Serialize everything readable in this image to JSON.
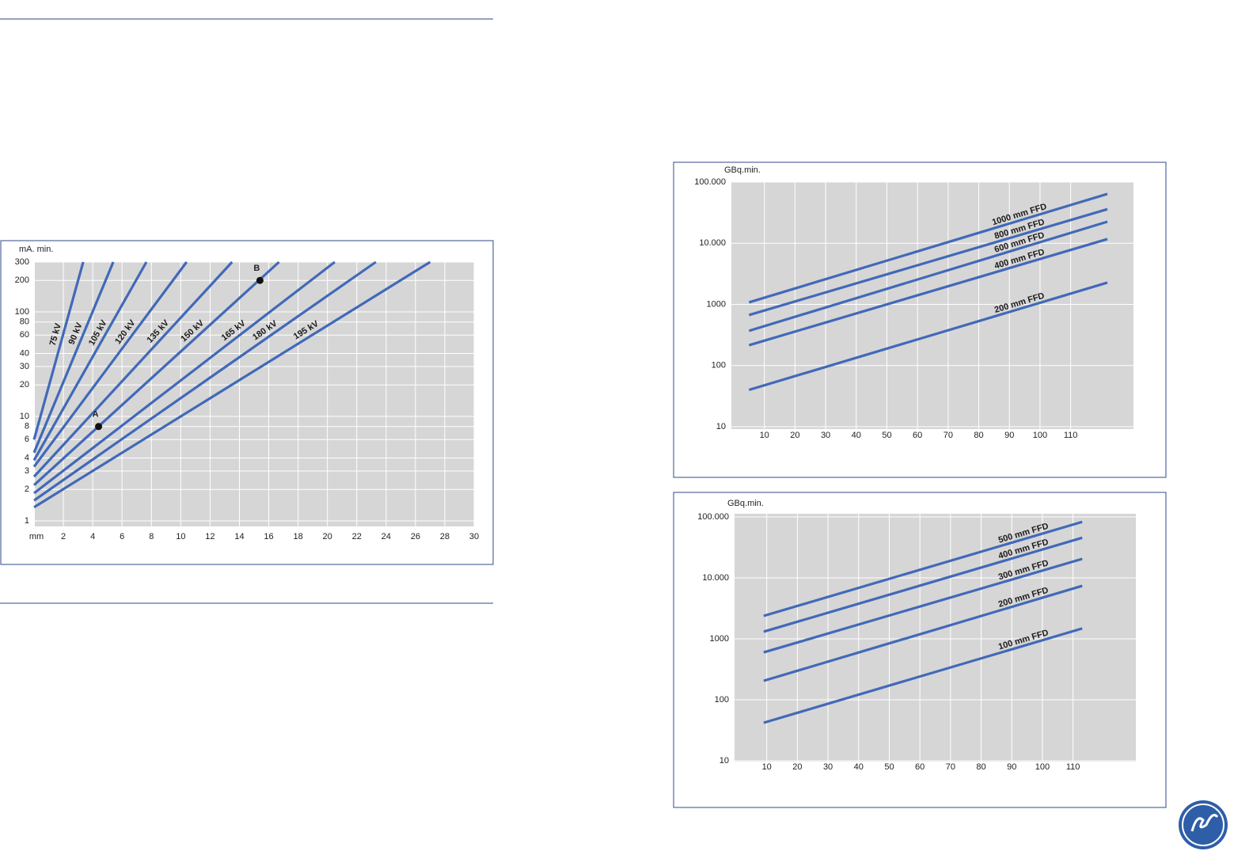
{
  "chart_data": [
    {
      "type": "line",
      "y_label": "mA. min.",
      "x_label": "mm",
      "ylog": true,
      "grid": true,
      "xlim": [
        0,
        30
      ],
      "xticks": [
        2,
        4,
        6,
        8,
        10,
        12,
        14,
        16,
        18,
        20,
        22,
        24,
        26,
        28,
        30
      ],
      "ylim": [
        1,
        300
      ],
      "yticks": [
        1,
        2,
        3,
        4,
        6,
        8,
        10,
        20,
        30,
        40,
        60,
        80,
        100,
        200,
        300
      ],
      "series": [
        {
          "name": "75 kV",
          "color": "#4169b8",
          "x": [
            0,
            3.35
          ],
          "values": [
            6.0,
            300
          ]
        },
        {
          "name": "90 kV",
          "color": "#4169b8",
          "x": [
            0,
            5.4
          ],
          "values": [
            4.5,
            300
          ]
        },
        {
          "name": "105 kV",
          "color": "#4169b8",
          "x": [
            0,
            7.66
          ],
          "values": [
            3.8,
            300
          ]
        },
        {
          "name": "120 kV",
          "color": "#4169b8",
          "x": [
            0,
            10.4
          ],
          "values": [
            3.3,
            300
          ]
        },
        {
          "name": "135 kV",
          "color": "#4169b8",
          "x": [
            0,
            13.5
          ],
          "values": [
            2.65,
            300
          ]
        },
        {
          "name": "150 kV",
          "color": "#4169b8",
          "x": [
            0,
            16.7
          ],
          "values": [
            2.2,
            300
          ]
        },
        {
          "name": "165 kV",
          "color": "#4169b8",
          "x": [
            0,
            20.5
          ],
          "values": [
            1.84,
            300
          ]
        },
        {
          "name": "180 kV",
          "color": "#4169b8",
          "x": [
            0,
            23.3
          ],
          "values": [
            1.57,
            300
          ]
        },
        {
          "name": "195 kV",
          "color": "#4169b8",
          "x": [
            0,
            27
          ],
          "values": [
            1.35,
            300
          ]
        }
      ],
      "annotations": [
        {
          "label": "A",
          "x": 4.4,
          "y": 8
        },
        {
          "label": "B",
          "x": 15.4,
          "y": 200
        }
      ]
    },
    {
      "type": "line",
      "y_label": "GBq.min.",
      "ylog": true,
      "grid": true,
      "xlim": [
        0,
        130
      ],
      "xticks": [
        10,
        20,
        30,
        40,
        50,
        60,
        70,
        80,
        90,
        100,
        110
      ],
      "ylim": [
        10,
        100000
      ],
      "yticks": [
        10,
        100,
        1000,
        {
          "value": 10000,
          "label": "10.000"
        },
        {
          "value": 100000,
          "label": "100.000"
        }
      ],
      "series": [
        {
          "name": "1000 mm FFD",
          "color": "#4169b8",
          "x": [
            5,
            122
          ],
          "values": [
            1080,
            64000
          ]
        },
        {
          "name": "800 mm FFD",
          "color": "#4169b8",
          "x": [
            5,
            122
          ],
          "values": [
            670,
            36000
          ]
        },
        {
          "name": "600 mm FFD",
          "color": "#4169b8",
          "x": [
            5,
            122
          ],
          "values": [
            370,
            22500
          ]
        },
        {
          "name": "400 mm FFD",
          "color": "#4169b8",
          "x": [
            5,
            122
          ],
          "values": [
            215,
            11700
          ]
        },
        {
          "name": "200 mm FFD",
          "color": "#4169b8",
          "x": [
            5,
            122
          ],
          "values": [
            40,
            2270
          ]
        }
      ]
    },
    {
      "type": "line",
      "y_label": "GBq.min.",
      "ylog": true,
      "grid": true,
      "xlim": [
        0,
        130
      ],
      "xticks": [
        10,
        20,
        30,
        40,
        50,
        60,
        70,
        80,
        90,
        100,
        110
      ],
      "ylim": [
        10,
        100000
      ],
      "yticks": [
        10,
        100,
        1000,
        {
          "value": 10000,
          "label": "10.000"
        },
        {
          "value": 100000,
          "label": "100.000"
        }
      ],
      "series": [
        {
          "name": "500 mm FFD",
          "color": "#4169b8",
          "x": [
            9,
            113
          ],
          "values": [
            2380,
            83000
          ]
        },
        {
          "name": "400 mm FFD",
          "color": "#4169b8",
          "x": [
            9,
            113
          ],
          "values": [
            1310,
            45500
          ]
        },
        {
          "name": "300 mm FFD",
          "color": "#4169b8",
          "x": [
            9,
            113
          ],
          "values": [
            600,
            20500
          ]
        },
        {
          "name": "200 mm FFD",
          "color": "#4169b8",
          "x": [
            9,
            113
          ],
          "values": [
            205,
            7400
          ]
        },
        {
          "name": "100 mm FFD",
          "color": "#4169b8",
          "x": [
            9,
            113
          ],
          "values": [
            42,
            1480
          ]
        }
      ]
    }
  ]
}
